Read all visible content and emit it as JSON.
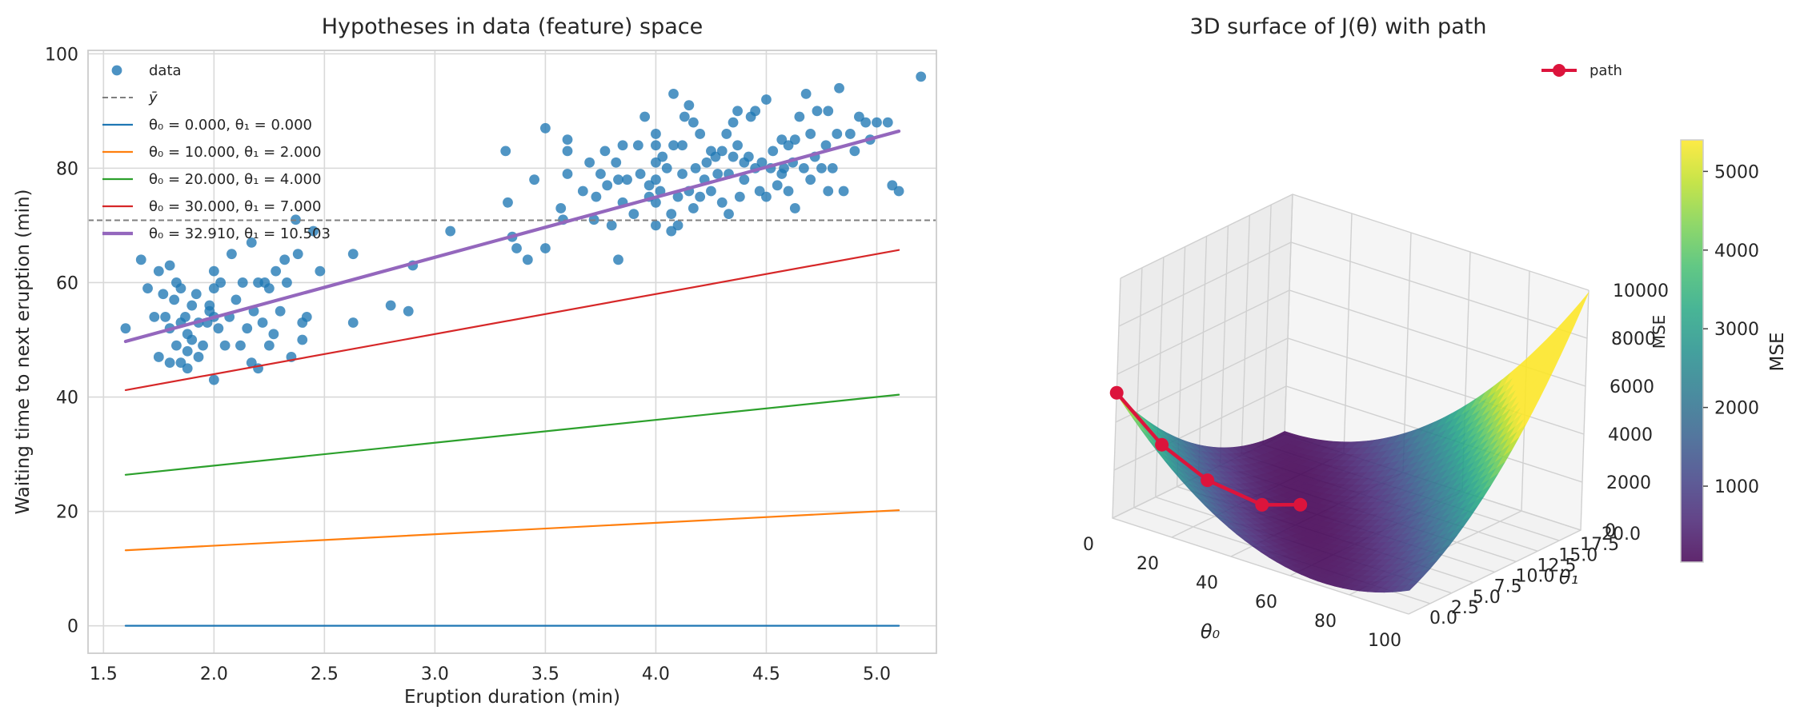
{
  "chart_data": [
    {
      "type": "scatter",
      "title": "Hypotheses in data (feature) space",
      "xlabel": "Eruption duration (min)",
      "ylabel": "Waiting time to next eruption (min)",
      "xlim": [
        1.43,
        5.27
      ],
      "ylim": [
        -4.8,
        100.6
      ],
      "xticks": [
        1.5,
        2.0,
        2.5,
        3.0,
        3.5,
        4.0,
        4.5,
        5.0
      ],
      "yticks": [
        0,
        20,
        40,
        60,
        80,
        100
      ],
      "xtick_labels": [
        "1.5",
        "2.0",
        "2.5",
        "3.0",
        "3.5",
        "4.0",
        "4.5",
        "5.0"
      ],
      "ytick_labels": [
        "0",
        "20",
        "40",
        "60",
        "80",
        "100"
      ],
      "grid": true,
      "legend_position": "top-left",
      "mean_line": {
        "name": "ȳ",
        "value": 70.9,
        "color": "#7f7f7f"
      },
      "scatter": {
        "name": "data",
        "color": "#1f77b4",
        "points": [
          [
            1.6,
            52
          ],
          [
            1.67,
            64
          ],
          [
            1.7,
            59
          ],
          [
            1.73,
            54
          ],
          [
            1.75,
            47
          ],
          [
            1.75,
            62
          ],
          [
            1.77,
            58
          ],
          [
            1.78,
            54
          ],
          [
            1.8,
            52
          ],
          [
            1.8,
            46
          ],
          [
            1.8,
            63
          ],
          [
            1.82,
            57
          ],
          [
            1.83,
            60
          ],
          [
            1.83,
            49
          ],
          [
            1.85,
            59
          ],
          [
            1.85,
            53
          ],
          [
            1.85,
            46
          ],
          [
            1.87,
            54
          ],
          [
            1.88,
            51
          ],
          [
            1.88,
            45
          ],
          [
            1.88,
            48
          ],
          [
            1.9,
            56
          ],
          [
            1.9,
            50
          ],
          [
            1.92,
            58
          ],
          [
            1.93,
            53
          ],
          [
            1.93,
            47
          ],
          [
            1.95,
            49
          ],
          [
            1.97,
            53
          ],
          [
            1.98,
            56
          ],
          [
            1.98,
            55
          ],
          [
            2.0,
            54
          ],
          [
            2.0,
            59
          ],
          [
            2.0,
            62
          ],
          [
            2.0,
            43
          ],
          [
            2.02,
            52
          ],
          [
            2.03,
            60
          ],
          [
            2.05,
            49
          ],
          [
            2.07,
            54
          ],
          [
            2.08,
            65
          ],
          [
            2.1,
            57
          ],
          [
            2.12,
            49
          ],
          [
            2.13,
            60
          ],
          [
            2.15,
            52
          ],
          [
            2.17,
            67
          ],
          [
            2.17,
            46
          ],
          [
            2.18,
            55
          ],
          [
            2.2,
            60
          ],
          [
            2.2,
            45
          ],
          [
            2.22,
            53
          ],
          [
            2.23,
            60
          ],
          [
            2.25,
            49
          ],
          [
            2.25,
            59
          ],
          [
            2.27,
            51
          ],
          [
            2.28,
            62
          ],
          [
            2.3,
            55
          ],
          [
            2.32,
            64
          ],
          [
            2.33,
            60
          ],
          [
            2.35,
            47
          ],
          [
            2.37,
            71
          ],
          [
            2.38,
            65
          ],
          [
            2.4,
            50
          ],
          [
            2.4,
            53
          ],
          [
            2.42,
            54
          ],
          [
            2.45,
            69
          ],
          [
            2.48,
            62
          ],
          [
            2.63,
            53
          ],
          [
            2.63,
            65
          ],
          [
            2.8,
            56
          ],
          [
            2.88,
            55
          ],
          [
            2.9,
            63
          ],
          [
            3.07,
            69
          ],
          [
            3.32,
            83
          ],
          [
            3.33,
            74
          ],
          [
            3.35,
            68
          ],
          [
            3.37,
            66
          ],
          [
            3.42,
            64
          ],
          [
            3.45,
            78
          ],
          [
            3.5,
            87
          ],
          [
            3.5,
            66
          ],
          [
            3.57,
            73
          ],
          [
            3.58,
            71
          ],
          [
            3.6,
            79
          ],
          [
            3.6,
            83
          ],
          [
            3.6,
            85
          ],
          [
            3.67,
            76
          ],
          [
            3.7,
            81
          ],
          [
            3.72,
            71
          ],
          [
            3.73,
            75
          ],
          [
            3.75,
            79
          ],
          [
            3.77,
            83
          ],
          [
            3.78,
            77
          ],
          [
            3.8,
            70
          ],
          [
            3.82,
            81
          ],
          [
            3.83,
            64
          ],
          [
            3.83,
            78
          ],
          [
            3.85,
            74
          ],
          [
            3.85,
            84
          ],
          [
            3.87,
            78
          ],
          [
            3.9,
            72
          ],
          [
            3.92,
            84
          ],
          [
            3.93,
            79
          ],
          [
            3.95,
            89
          ],
          [
            3.97,
            75
          ],
          [
            3.97,
            77
          ],
          [
            4.0,
            70
          ],
          [
            4.0,
            74
          ],
          [
            4.0,
            78
          ],
          [
            4.0,
            81
          ],
          [
            4.0,
            84
          ],
          [
            4.0,
            86
          ],
          [
            4.02,
            76
          ],
          [
            4.03,
            82
          ],
          [
            4.05,
            80
          ],
          [
            4.07,
            72
          ],
          [
            4.07,
            69
          ],
          [
            4.08,
            93
          ],
          [
            4.08,
            84
          ],
          [
            4.1,
            70
          ],
          [
            4.1,
            75
          ],
          [
            4.12,
            79
          ],
          [
            4.12,
            84
          ],
          [
            4.13,
            89
          ],
          [
            4.15,
            76
          ],
          [
            4.15,
            91
          ],
          [
            4.17,
            73
          ],
          [
            4.17,
            88
          ],
          [
            4.18,
            80
          ],
          [
            4.2,
            86
          ],
          [
            4.2,
            75
          ],
          [
            4.22,
            78
          ],
          [
            4.23,
            81
          ],
          [
            4.25,
            83
          ],
          [
            4.25,
            76
          ],
          [
            4.27,
            82
          ],
          [
            4.28,
            79
          ],
          [
            4.3,
            74
          ],
          [
            4.3,
            83
          ],
          [
            4.32,
            86
          ],
          [
            4.33,
            72
          ],
          [
            4.33,
            79
          ],
          [
            4.35,
            88
          ],
          [
            4.35,
            82
          ],
          [
            4.37,
            90
          ],
          [
            4.37,
            84
          ],
          [
            4.38,
            75
          ],
          [
            4.4,
            81
          ],
          [
            4.4,
            78
          ],
          [
            4.42,
            82
          ],
          [
            4.43,
            89
          ],
          [
            4.45,
            90
          ],
          [
            4.45,
            80
          ],
          [
            4.47,
            76
          ],
          [
            4.48,
            81
          ],
          [
            4.5,
            75
          ],
          [
            4.5,
            92
          ],
          [
            4.52,
            80
          ],
          [
            4.53,
            83
          ],
          [
            4.55,
            77
          ],
          [
            4.57,
            85
          ],
          [
            4.57,
            79
          ],
          [
            4.58,
            80
          ],
          [
            4.6,
            84
          ],
          [
            4.6,
            76
          ],
          [
            4.62,
            81
          ],
          [
            4.63,
            73
          ],
          [
            4.63,
            85
          ],
          [
            4.65,
            89
          ],
          [
            4.67,
            80
          ],
          [
            4.68,
            93
          ],
          [
            4.7,
            86
          ],
          [
            4.7,
            78
          ],
          [
            4.72,
            82
          ],
          [
            4.73,
            90
          ],
          [
            4.75,
            80
          ],
          [
            4.77,
            84
          ],
          [
            4.78,
            76
          ],
          [
            4.78,
            90
          ],
          [
            4.8,
            80
          ],
          [
            4.82,
            86
          ],
          [
            4.83,
            94
          ],
          [
            4.85,
            76
          ],
          [
            4.88,
            86
          ],
          [
            4.9,
            83
          ],
          [
            4.92,
            89
          ],
          [
            4.95,
            88
          ],
          [
            4.97,
            85
          ],
          [
            5.0,
            88
          ],
          [
            5.05,
            88
          ],
          [
            5.07,
            77
          ],
          [
            5.1,
            76
          ],
          [
            5.2,
            96
          ]
        ]
      },
      "lines": [
        {
          "label": "θ₀ = 0.000,  θ₁ = 0.000",
          "theta0": 0.0,
          "theta1": 0.0,
          "color": "#1f77b4",
          "width": 2.2
        },
        {
          "label": "θ₀ = 10.000,  θ₁ = 2.000",
          "theta0": 10.0,
          "theta1": 2.0,
          "color": "#ff7f0e",
          "width": 2.2
        },
        {
          "label": "θ₀ = 20.000,  θ₁ = 4.000",
          "theta0": 20.0,
          "theta1": 4.0,
          "color": "#2ca02c",
          "width": 2.2
        },
        {
          "label": "θ₀ = 30.000,  θ₁ = 7.000",
          "theta0": 30.0,
          "theta1": 7.0,
          "color": "#d62728",
          "width": 2.2
        },
        {
          "label": "θ₀ = 32.910,  θ₁ = 10.503",
          "theta0": 32.91,
          "theta1": 10.503,
          "color": "#9467bd",
          "width": 4.2
        }
      ],
      "line_x_range": [
        1.6,
        5.1
      ]
    },
    {
      "type": "surface",
      "title": "3D surface of J(θ) with path",
      "xlabel": "θ₀",
      "ylabel": "θ₁",
      "zlabel": "MSE",
      "xlim": [
        0,
        100
      ],
      "ylim": [
        0,
        20
      ],
      "zlim": [
        0,
        10000
      ],
      "xticks": [
        0,
        20,
        40,
        60,
        80,
        100
      ],
      "yticks": [
        0.0,
        2.5,
        5.0,
        7.5,
        10.0,
        12.5,
        15.0,
        17.5,
        20.0
      ],
      "zticks": [
        0,
        2000,
        4000,
        6000,
        8000,
        10000
      ],
      "colormap": "viridis",
      "legend": {
        "label": "path",
        "color": "#dc143c",
        "position": "top-right"
      },
      "path": [
        [
          0,
          0,
          5225
        ],
        [
          10,
          2,
          3110
        ],
        [
          20,
          4,
          1680
        ],
        [
          30,
          7,
          530
        ],
        [
          32.91,
          10.503,
          35
        ]
      ],
      "colorbar": {
        "label": "MSE",
        "ticks": [
          1000,
          2000,
          3000,
          4000,
          5000
        ],
        "min": 35,
        "max": 5400
      }
    }
  ]
}
